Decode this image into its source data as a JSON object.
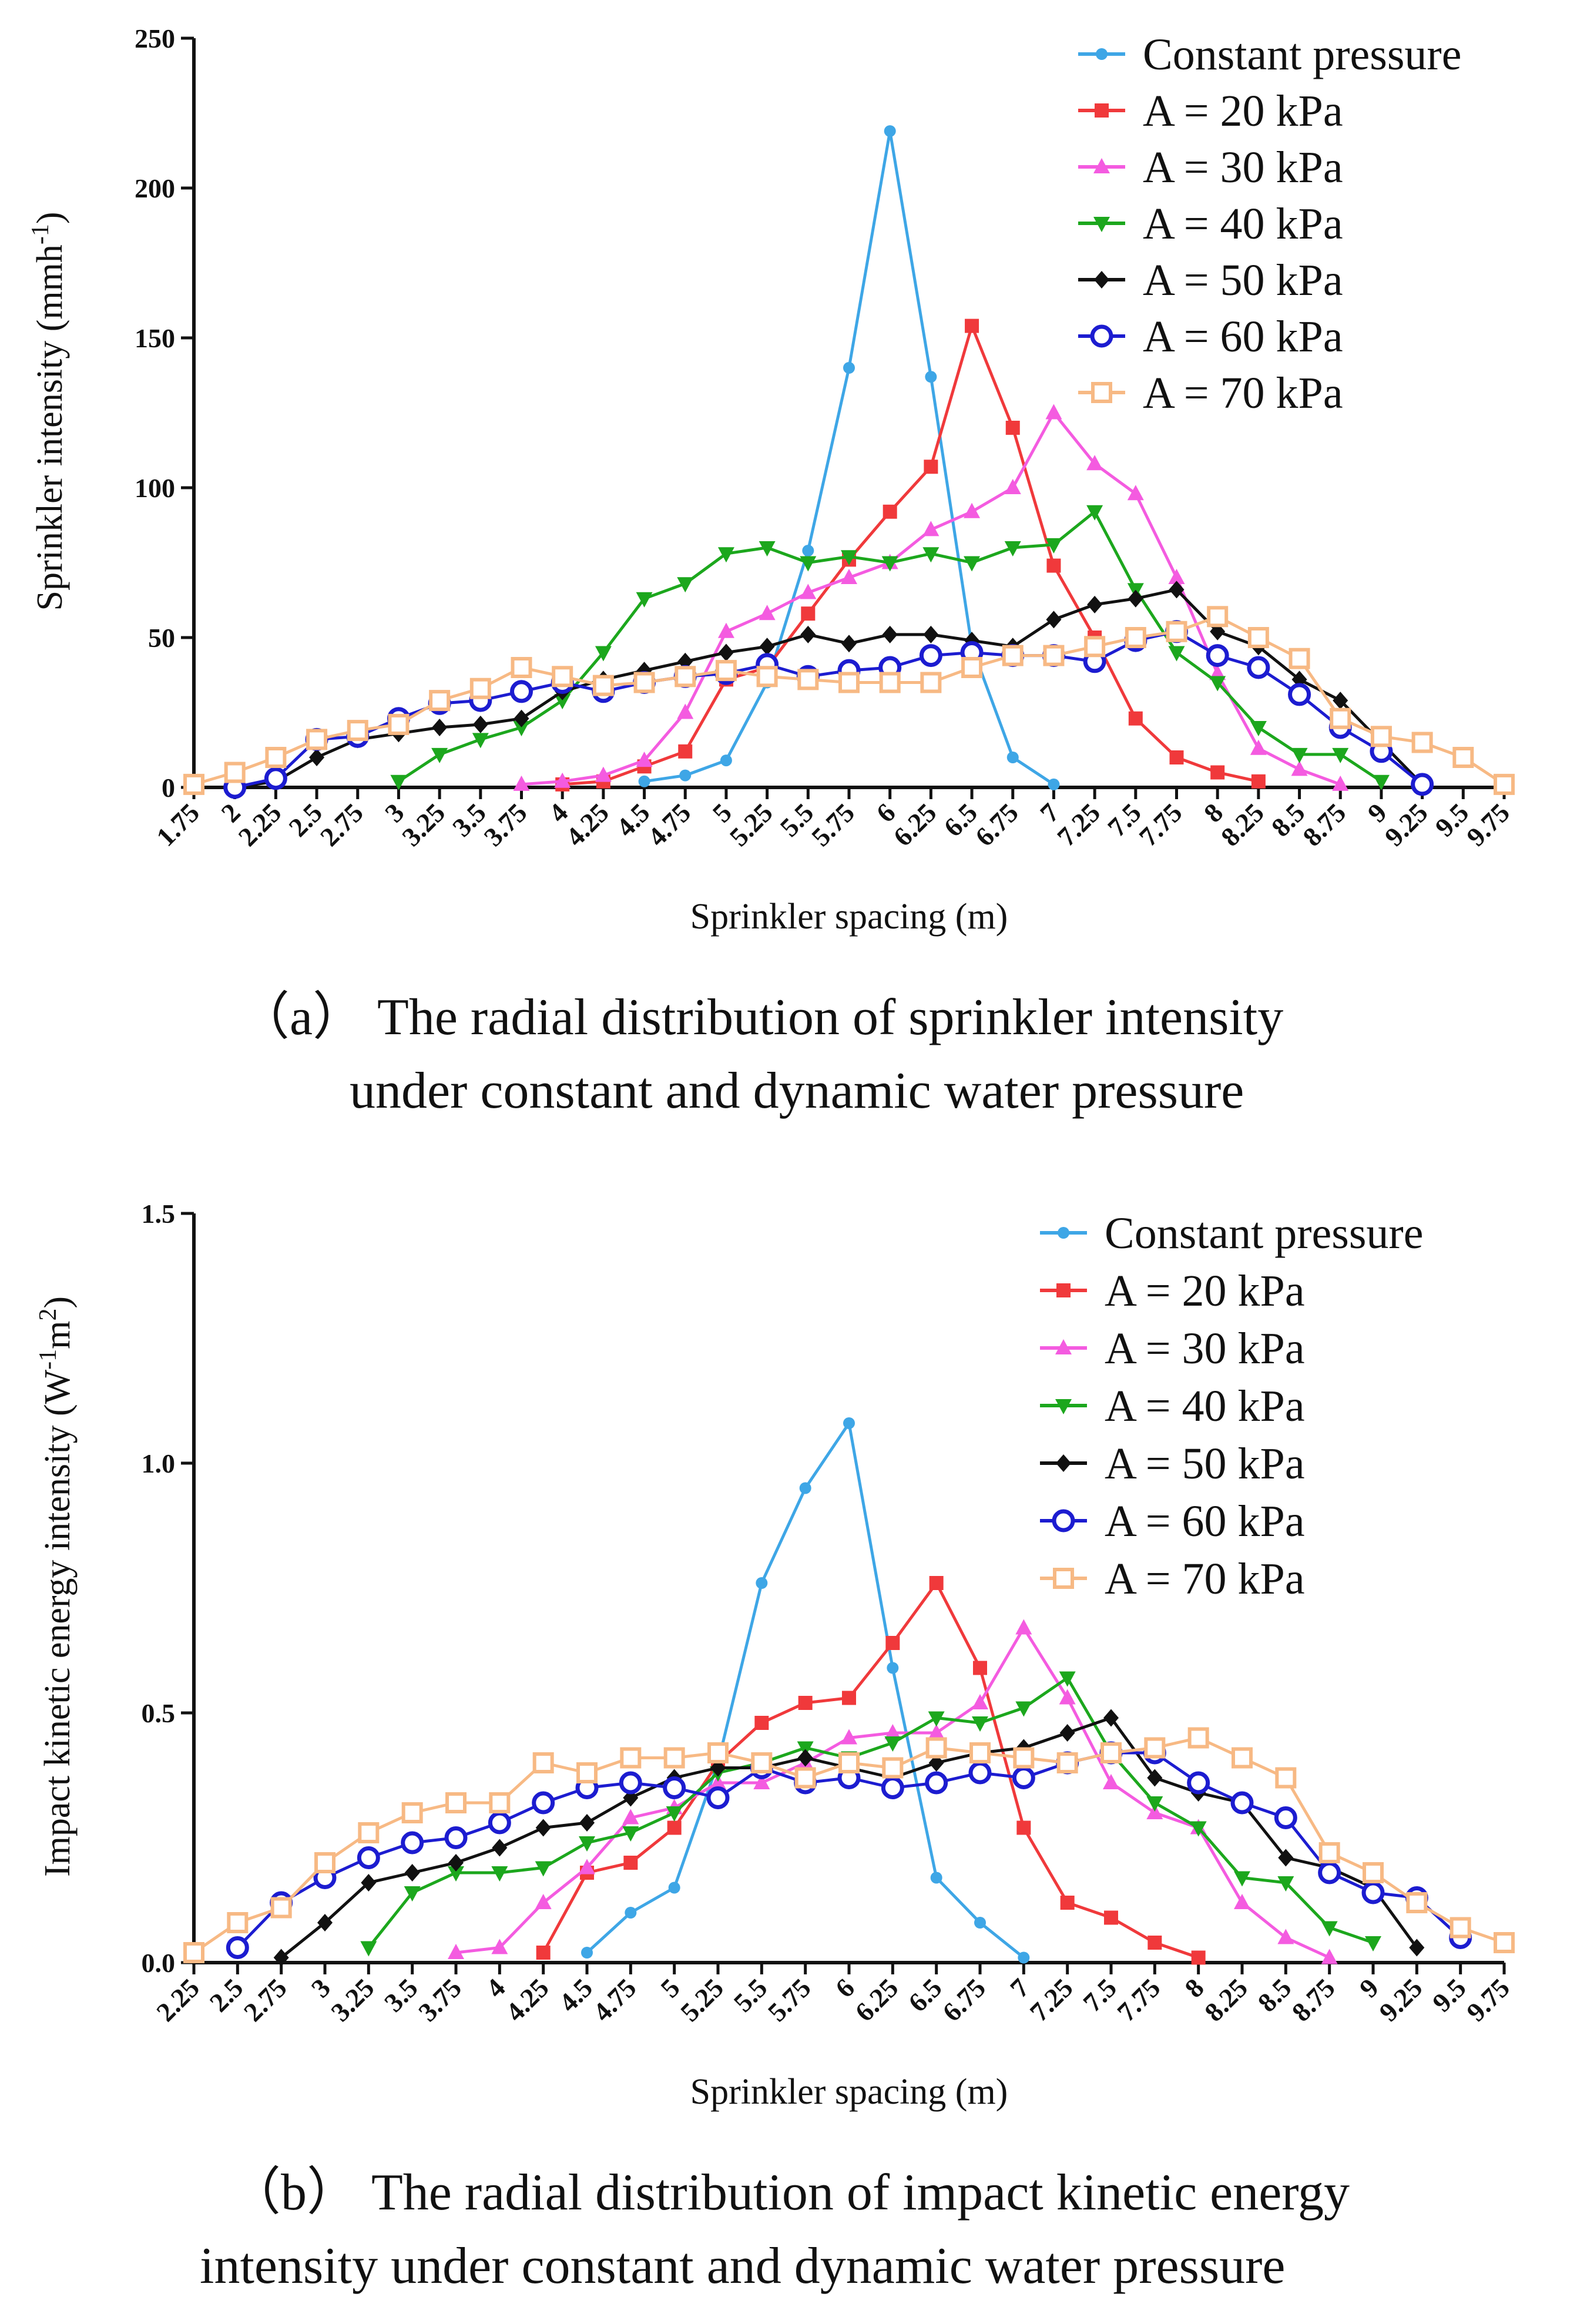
{
  "chart_data": [
    {
      "type": "line",
      "panel": "a",
      "ylabel": "Sprinkler intensity (mmh-1)",
      "ylabel_main": "Sprinkler intensity (mmh",
      "ylabel_sup": "-1",
      "ylabel_close": ")",
      "xlabel": "Sprinkler spacing (m)",
      "ylim": [
        0,
        250
      ],
      "yticks": [
        0,
        50,
        100,
        150,
        200,
        250
      ],
      "ytick_labels": [
        "0",
        "50",
        "100",
        "150",
        "200",
        "250"
      ],
      "xlim": [
        1.75,
        9.75
      ],
      "xticks": [
        1.75,
        2,
        2.25,
        2.5,
        2.75,
        3,
        3.25,
        3.5,
        3.75,
        4,
        4.25,
        4.5,
        4.75,
        5,
        5.25,
        5.5,
        5.75,
        6,
        6.25,
        6.5,
        6.75,
        7,
        7.25,
        7.5,
        7.75,
        8,
        8.25,
        8.5,
        8.75,
        9,
        9.25,
        9.5,
        9.75
      ],
      "xtick_labels": [
        "1.75",
        "2",
        "2.25",
        "2.5",
        "2.75",
        "3",
        "3.25",
        "3.5",
        "3.75",
        "4",
        "4.25",
        "4.5",
        "4.75",
        "5",
        "5.25",
        "5.5",
        "5.75",
        "6",
        "6.25",
        "6.5",
        "6.75",
        "7",
        "7.25",
        "7.5",
        "7.75",
        "8",
        "8.25",
        "8.5",
        "8.75",
        "9",
        "9.25",
        "9.5",
        "9.75"
      ],
      "legend_position": "top-right",
      "caption_line1": "（a） The radial distribution of sprinkler intensity",
      "caption_line2": "under constant and dynamic water pressure",
      "series": [
        {
          "name": "Constant pressure",
          "color": "#3ea6e6",
          "marker": "dot",
          "x": [
            4.5,
            4.75,
            5,
            5.25,
            5.5,
            5.75,
            6,
            6.25,
            6.5,
            6.75,
            7
          ],
          "y": [
            2,
            4,
            9,
            35,
            79,
            140,
            219,
            137,
            47,
            10,
            1
          ]
        },
        {
          "name": "A = 20 kPa",
          "color": "#f0393b",
          "marker": "square",
          "x": [
            4,
            4.25,
            4.5,
            4.75,
            5,
            5.25,
            5.5,
            5.75,
            6,
            6.25,
            6.5,
            6.75,
            7,
            7.25,
            7.5,
            7.75,
            8,
            8.25
          ],
          "y": [
            1,
            2,
            7,
            12,
            36,
            40,
            58,
            76,
            92,
            107,
            154,
            120,
            74,
            50,
            23,
            10,
            5,
            2
          ]
        },
        {
          "name": "A = 30 kPa",
          "color": "#f45be0",
          "marker": "triangle",
          "x": [
            3.75,
            4,
            4.25,
            4.5,
            4.75,
            5,
            5.25,
            5.5,
            5.75,
            6,
            6.25,
            6.5,
            6.75,
            7,
            7.25,
            7.5,
            7.75,
            8,
            8.25,
            8.5,
            8.75
          ],
          "y": [
            1,
            2,
            4,
            9,
            25,
            52,
            58,
            65,
            70,
            75,
            86,
            92,
            100,
            125,
            108,
            98,
            70,
            38,
            13,
            6,
            1
          ]
        },
        {
          "name": "A = 40 kPa",
          "color": "#1ca71d",
          "marker": "tri-down",
          "x": [
            3,
            3.25,
            3.5,
            3.75,
            4,
            4.25,
            4.5,
            4.75,
            5,
            5.25,
            5.5,
            5.75,
            6,
            6.25,
            6.5,
            6.75,
            7,
            7.25,
            7.5,
            7.75,
            8,
            8.25,
            8.5,
            8.75,
            9
          ],
          "y": [
            2,
            11,
            16,
            20,
            29,
            45,
            63,
            68,
            78,
            80,
            75,
            77,
            75,
            78,
            75,
            80,
            81,
            92,
            66,
            45,
            35,
            20,
            11,
            11,
            2
          ]
        },
        {
          "name": "A = 50 kPa",
          "color": "#111111",
          "marker": "diamond",
          "x": [
            2,
            2.25,
            2.5,
            2.75,
            3,
            3.25,
            3.5,
            3.75,
            4,
            4.25,
            4.5,
            4.75,
            5,
            5.25,
            5.5,
            5.75,
            6,
            6.25,
            6.5,
            6.75,
            7,
            7.25,
            7.5,
            7.75,
            8,
            8.25,
            8.5,
            8.75,
            9,
            9.25
          ],
          "y": [
            0,
            2,
            10,
            16,
            18,
            20,
            21,
            23,
            32,
            36,
            39,
            42,
            45,
            47,
            51,
            48,
            51,
            51,
            49,
            47,
            56,
            61,
            63,
            66,
            52,
            47,
            36,
            29,
            15,
            1
          ]
        },
        {
          "name": "A = 60 kPa",
          "color": "#1c1cd0",
          "marker": "circle",
          "x": [
            2,
            2.25,
            2.5,
            2.75,
            3,
            3.25,
            3.5,
            3.75,
            4,
            4.25,
            4.5,
            4.75,
            5,
            5.25,
            5.5,
            5.75,
            6,
            6.25,
            6.5,
            6.75,
            7,
            7.25,
            7.5,
            7.75,
            8,
            8.25,
            8.5,
            8.75,
            9,
            9.25
          ],
          "y": [
            0,
            3,
            16,
            17,
            23,
            28,
            29,
            32,
            35,
            32,
            35,
            37,
            38,
            41,
            37,
            39,
            40,
            44,
            45,
            44,
            44,
            42,
            49,
            52,
            44,
            40,
            31,
            20,
            12,
            1
          ]
        },
        {
          "name": "A = 70 kPa",
          "color": "#f7b984",
          "marker": "open-square",
          "x": [
            1.75,
            2,
            2.25,
            2.5,
            2.75,
            3,
            3.25,
            3.5,
            3.75,
            4,
            4.25,
            4.5,
            4.75,
            5,
            5.25,
            5.5,
            5.75,
            6,
            6.25,
            6.5,
            6.75,
            7,
            7.25,
            7.5,
            7.75,
            8,
            8.25,
            8.5,
            8.75,
            9,
            9.25,
            9.5,
            9.75
          ],
          "y": [
            1,
            5,
            10,
            16,
            19,
            21,
            29,
            33,
            40,
            37,
            34,
            35,
            37,
            39,
            37,
            36,
            35,
            35,
            35,
            40,
            44,
            44,
            47,
            50,
            52,
            57,
            50,
            43,
            23,
            17,
            15,
            10,
            1
          ]
        }
      ]
    },
    {
      "type": "line",
      "panel": "b",
      "ylabel": "Impact kinetic energy intensity (W-1m2)",
      "ylabel_main": "Impact kinetic energy intensity (W",
      "ylabel_sup": "-1",
      "ylabel_mid": "m",
      "ylabel_sup2": "2",
      "ylabel_close": ")",
      "xlabel": "Sprinkler spacing (m)",
      "ylim": [
        0,
        1.5
      ],
      "yticks": [
        0,
        0.5,
        1.0,
        1.5
      ],
      "ytick_labels": [
        "0.0",
        "0.5",
        "1.0",
        "1.5"
      ],
      "xlim": [
        2.25,
        9.75
      ],
      "xticks": [
        2.25,
        2.5,
        2.75,
        3,
        3.25,
        3.5,
        3.75,
        4,
        4.25,
        4.5,
        4.75,
        5,
        5.25,
        5.5,
        5.75,
        6,
        6.25,
        6.5,
        6.75,
        7,
        7.25,
        7.5,
        7.75,
        8,
        8.25,
        8.5,
        8.75,
        9,
        9.25,
        9.5,
        9.75
      ],
      "xtick_labels": [
        "2.25",
        "2.5",
        "2.75",
        "3",
        "3.25",
        "3.5",
        "3.75",
        "4",
        "4.25",
        "4.5",
        "4.75",
        "5",
        "5.25",
        "5.5",
        "5.75",
        "6",
        "6.25",
        "6.5",
        "6.75",
        "7",
        "7.25",
        "7.5",
        "7.75",
        "8",
        "8.25",
        "8.5",
        "8.75",
        "9",
        "9.25",
        "9.5",
        "9.75"
      ],
      "legend_position": "top-right",
      "caption_line1": "（b） The radial distribution of impact kinetic energy",
      "caption_line2": "intensity under constant and dynamic water pressure",
      "series": [
        {
          "name": "Constant pressure",
          "color": "#3ea6e6",
          "marker": "dot",
          "x": [
            4.5,
            4.75,
            5,
            5.25,
            5.5,
            5.75,
            6,
            6.25,
            6.5,
            6.75,
            7
          ],
          "y": [
            0.02,
            0.1,
            0.15,
            0.4,
            0.76,
            0.95,
            1.08,
            0.59,
            0.17,
            0.08,
            0.01
          ]
        },
        {
          "name": "A = 20 kPa",
          "color": "#f0393b",
          "marker": "square",
          "x": [
            4.25,
            4.5,
            4.75,
            5,
            5.25,
            5.5,
            5.75,
            6,
            6.25,
            6.5,
            6.75,
            7,
            7.25,
            7.5,
            7.75,
            8
          ],
          "y": [
            0.02,
            0.18,
            0.2,
            0.27,
            0.4,
            0.48,
            0.52,
            0.53,
            0.64,
            0.76,
            0.59,
            0.27,
            0.12,
            0.09,
            0.04,
            0.01
          ]
        },
        {
          "name": "A = 30 kPa",
          "color": "#f45be0",
          "marker": "triangle",
          "x": [
            3.75,
            4,
            4.25,
            4.5,
            4.75,
            5,
            5.25,
            5.5,
            5.75,
            6,
            6.25,
            6.5,
            6.75,
            7,
            7.25,
            7.5,
            7.75,
            8,
            8.25,
            8.5,
            8.75
          ],
          "y": [
            0.02,
            0.03,
            0.12,
            0.19,
            0.29,
            0.31,
            0.36,
            0.36,
            0.4,
            0.45,
            0.46,
            0.46,
            0.52,
            0.67,
            0.53,
            0.36,
            0.3,
            0.27,
            0.12,
            0.05,
            0.01
          ]
        },
        {
          "name": "A = 40 kPa",
          "color": "#1ca71d",
          "marker": "tri-down",
          "x": [
            3.25,
            3.5,
            3.75,
            4,
            4.25,
            4.5,
            4.75,
            5,
            5.25,
            5.5,
            5.75,
            6,
            6.25,
            6.5,
            6.75,
            7,
            7.25,
            7.5,
            7.75,
            8,
            8.25,
            8.5,
            8.75,
            9
          ],
          "y": [
            0.03,
            0.14,
            0.18,
            0.18,
            0.19,
            0.24,
            0.26,
            0.3,
            0.38,
            0.4,
            0.43,
            0.41,
            0.44,
            0.49,
            0.48,
            0.51,
            0.57,
            0.42,
            0.32,
            0.27,
            0.17,
            0.16,
            0.07,
            0.04
          ]
        },
        {
          "name": "A = 50 kPa",
          "color": "#111111",
          "marker": "diamond",
          "x": [
            2.75,
            3,
            3.25,
            3.5,
            3.75,
            4,
            4.25,
            4.5,
            4.75,
            5,
            5.25,
            5.5,
            5.75,
            6,
            6.25,
            6.5,
            6.75,
            7,
            7.25,
            7.5,
            7.75,
            8,
            8.25,
            8.5,
            8.75,
            9,
            9.25
          ],
          "y": [
            0.01,
            0.08,
            0.16,
            0.18,
            0.2,
            0.23,
            0.27,
            0.28,
            0.33,
            0.37,
            0.39,
            0.39,
            0.41,
            0.39,
            0.37,
            0.4,
            0.42,
            0.43,
            0.46,
            0.49,
            0.37,
            0.34,
            0.32,
            0.21,
            0.19,
            0.15,
            0.03
          ]
        },
        {
          "name": "A = 60 kPa",
          "color": "#1c1cd0",
          "marker": "circle",
          "x": [
            2.5,
            2.75,
            3,
            3.25,
            3.5,
            3.75,
            4,
            4.25,
            4.5,
            4.75,
            5,
            5.25,
            5.5,
            5.75,
            6,
            6.25,
            6.5,
            6.75,
            7,
            7.25,
            7.5,
            7.75,
            8,
            8.25,
            8.5,
            8.75,
            9,
            9.25,
            9.5
          ],
          "y": [
            0.03,
            0.12,
            0.17,
            0.21,
            0.24,
            0.25,
            0.28,
            0.32,
            0.35,
            0.36,
            0.35,
            0.33,
            0.39,
            0.36,
            0.37,
            0.35,
            0.36,
            0.38,
            0.37,
            0.4,
            0.42,
            0.42,
            0.36,
            0.32,
            0.29,
            0.18,
            0.14,
            0.13,
            0.05
          ]
        },
        {
          "name": "A = 70 kPa",
          "color": "#f7b984",
          "marker": "open-square",
          "x": [
            2.25,
            2.5,
            2.75,
            3,
            3.25,
            3.5,
            3.75,
            4,
            4.25,
            4.5,
            4.75,
            5,
            5.25,
            5.5,
            5.75,
            6,
            6.25,
            6.5,
            6.75,
            7,
            7.25,
            7.5,
            7.75,
            8,
            8.25,
            8.5,
            8.75,
            9,
            9.25,
            9.5,
            9.75
          ],
          "y": [
            0.02,
            0.08,
            0.11,
            0.2,
            0.26,
            0.3,
            0.32,
            0.32,
            0.4,
            0.38,
            0.41,
            0.41,
            0.42,
            0.4,
            0.37,
            0.4,
            0.39,
            0.43,
            0.42,
            0.41,
            0.4,
            0.42,
            0.43,
            0.45,
            0.41,
            0.37,
            0.22,
            0.18,
            0.12,
            0.07,
            0.04
          ]
        }
      ]
    }
  ]
}
